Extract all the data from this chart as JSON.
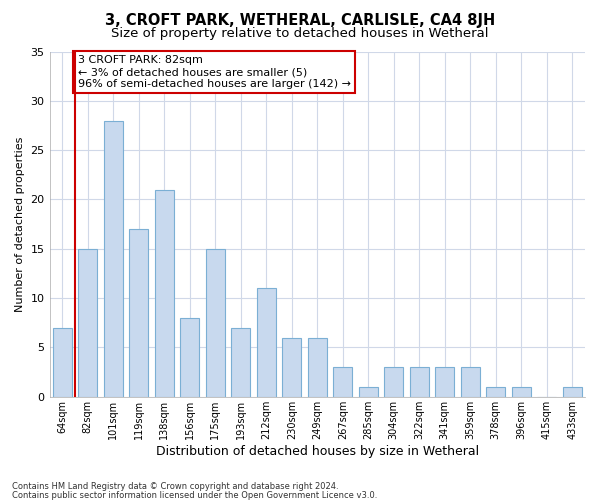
{
  "title": "3, CROFT PARK, WETHERAL, CARLISLE, CA4 8JH",
  "subtitle": "Size of property relative to detached houses in Wetheral",
  "xlabel": "Distribution of detached houses by size in Wetheral",
  "ylabel": "Number of detached properties",
  "categories": [
    "64sqm",
    "82sqm",
    "101sqm",
    "119sqm",
    "138sqm",
    "156sqm",
    "175sqm",
    "193sqm",
    "212sqm",
    "230sqm",
    "249sqm",
    "267sqm",
    "285sqm",
    "304sqm",
    "322sqm",
    "341sqm",
    "359sqm",
    "378sqm",
    "396sqm",
    "415sqm",
    "433sqm"
  ],
  "values": [
    7,
    15,
    28,
    17,
    21,
    8,
    15,
    7,
    11,
    6,
    6,
    3,
    1,
    3,
    3,
    3,
    3,
    1,
    1,
    0,
    1
  ],
  "bar_color": "#c8d9ee",
  "bar_edge_color": "#7bafd4",
  "highlight_index": 1,
  "highlight_color": "#cc0000",
  "ylim": [
    0,
    35
  ],
  "yticks": [
    0,
    5,
    10,
    15,
    20,
    25,
    30,
    35
  ],
  "annotation_text": "3 CROFT PARK: 82sqm\n← 3% of detached houses are smaller (5)\n96% of semi-detached houses are larger (142) →",
  "annotation_box_color": "#ffffff",
  "annotation_border_color": "#cc0000",
  "plot_bg_color": "#ffffff",
  "fig_bg_color": "#ffffff",
  "grid_color": "#d0d8e8",
  "footer_line1": "Contains HM Land Registry data © Crown copyright and database right 2024.",
  "footer_line2": "Contains public sector information licensed under the Open Government Licence v3.0.",
  "title_fontsize": 10.5,
  "subtitle_fontsize": 9.5,
  "bar_width": 0.75
}
